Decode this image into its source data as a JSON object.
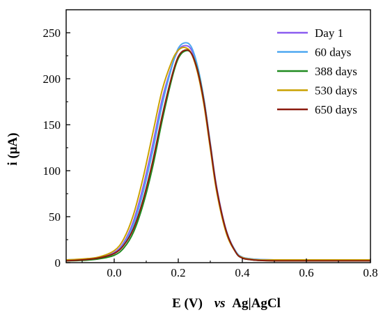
{
  "chart_data": {
    "type": "line",
    "xlabel_parts": [
      "E (V)",
      "vs",
      "Ag|AgCl"
    ],
    "ylabel": "i (μA)",
    "xlim": [
      -0.15,
      0.8
    ],
    "ylim": [
      0,
      275
    ],
    "x_ticks": [
      "0.0",
      "0.2",
      "0.4",
      "0.6",
      "0.8"
    ],
    "x_tick_values": [
      0.0,
      0.2,
      0.4,
      0.6,
      0.8
    ],
    "y_ticks": [
      "0",
      "50",
      "100",
      "150",
      "200",
      "250"
    ],
    "y_tick_values": [
      0,
      50,
      100,
      150,
      200,
      250
    ],
    "legend_position": "top-right",
    "grid": false,
    "series": [
      {
        "name": "Day 1",
        "color": "#8a5cf0",
        "x": [
          -0.15,
          -0.1,
          -0.05,
          0.0,
          0.03,
          0.06,
          0.09,
          0.12,
          0.15,
          0.18,
          0.2,
          0.22,
          0.24,
          0.26,
          0.28,
          0.3,
          0.32,
          0.35,
          0.38,
          0.4,
          0.42,
          0.45,
          0.5,
          0.6,
          0.7,
          0.8
        ],
        "y": [
          3,
          3.5,
          5,
          11,
          22,
          45,
          82,
          128,
          178,
          214,
          231,
          236,
          232,
          212,
          178,
          130,
          82,
          35,
          12,
          6,
          4.5,
          3.5,
          3,
          3,
          3,
          3
        ]
      },
      {
        "name": "60 days",
        "color": "#4fa8f0",
        "x": [
          -0.15,
          -0.1,
          -0.05,
          0.0,
          0.03,
          0.06,
          0.09,
          0.12,
          0.15,
          0.18,
          0.2,
          0.22,
          0.24,
          0.26,
          0.28,
          0.3,
          0.32,
          0.35,
          0.38,
          0.4,
          0.42,
          0.45,
          0.5,
          0.6,
          0.7,
          0.8
        ],
        "y": [
          3,
          3.5,
          5,
          10,
          20,
          41,
          76,
          121,
          172,
          213,
          233,
          239,
          235,
          214,
          178,
          128,
          80,
          34,
          12,
          6,
          4.5,
          3.5,
          3,
          3,
          3,
          3
        ]
      },
      {
        "name": "388 days",
        "color": "#1f8a1f",
        "x": [
          -0.15,
          -0.1,
          -0.05,
          0.0,
          0.03,
          0.06,
          0.09,
          0.12,
          0.15,
          0.18,
          0.2,
          0.22,
          0.24,
          0.26,
          0.28,
          0.3,
          0.32,
          0.35,
          0.38,
          0.4,
          0.42,
          0.45,
          0.5,
          0.6,
          0.7,
          0.8
        ],
        "y": [
          2,
          2.5,
          4,
          8,
          16,
          33,
          63,
          104,
          155,
          200,
          222,
          230,
          228,
          210,
          176,
          128,
          80,
          34,
          11,
          5,
          3.5,
          2.5,
          2,
          2,
          2,
          2
        ]
      },
      {
        "name": "530 days",
        "color": "#c9a100",
        "x": [
          -0.15,
          -0.1,
          -0.05,
          0.0,
          0.03,
          0.06,
          0.09,
          0.12,
          0.15,
          0.18,
          0.2,
          0.22,
          0.24,
          0.26,
          0.28,
          0.3,
          0.32,
          0.35,
          0.38,
          0.4,
          0.42,
          0.45,
          0.5,
          0.6,
          0.7,
          0.8
        ],
        "y": [
          3,
          4,
          6,
          13,
          26,
          52,
          92,
          140,
          188,
          219,
          231,
          234,
          228,
          207,
          172,
          124,
          77,
          32,
          11,
          5.5,
          4,
          3,
          3,
          3,
          3,
          3
        ]
      },
      {
        "name": "650 days",
        "color": "#8b1a0e",
        "x": [
          -0.15,
          -0.1,
          -0.05,
          0.0,
          0.03,
          0.06,
          0.09,
          0.12,
          0.15,
          0.18,
          0.2,
          0.22,
          0.24,
          0.26,
          0.28,
          0.3,
          0.32,
          0.35,
          0.38,
          0.4,
          0.42,
          0.45,
          0.5,
          0.6,
          0.7,
          0.8
        ],
        "y": [
          2,
          3,
          5,
          10,
          19,
          37,
          68,
          110,
          160,
          203,
          224,
          231,
          228,
          209,
          175,
          127,
          80,
          34,
          11,
          5,
          3.5,
          2.5,
          2,
          2,
          2,
          2
        ]
      }
    ]
  }
}
